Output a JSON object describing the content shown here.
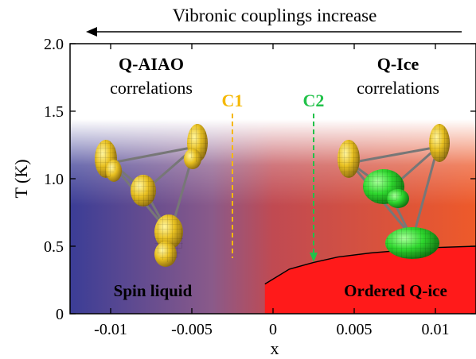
{
  "header": {
    "arrow_label": "Vibronic couplings increase"
  },
  "regions": {
    "left_title": "Q-AIAO",
    "left_subtitle": "correlations",
    "right_title": "Q-Ice",
    "right_subtitle": "correlations",
    "left_phase": "Spin liquid",
    "right_phase": "Ordered Q-ice"
  },
  "markers": [
    {
      "label": "C1",
      "x": -0.0025,
      "color": "#f5b800",
      "arrow": false
    },
    {
      "label": "C2",
      "x": 0.0025,
      "color": "#22c24a",
      "arrow": true
    }
  ],
  "chart_data": {
    "type": "area",
    "title": "",
    "xlabel": "x",
    "ylabel": "T (K)",
    "xlim": [
      -0.0125,
      0.0125
    ],
    "ylim": [
      0,
      2.0
    ],
    "xticks": [
      -0.01,
      -0.005,
      0,
      0.005,
      0.01
    ],
    "xtick_labels": [
      "-0.01",
      "-0.005",
      "0",
      "0.005",
      "0.01"
    ],
    "yticks": [
      0,
      0.5,
      1.0,
      1.5,
      2.0
    ],
    "ytick_labels": [
      "0",
      "0.5",
      "1.0",
      "1.5",
      "2.0"
    ],
    "grid": false,
    "series": [
      {
        "name": "Ordered Q-ice",
        "x": [
          -0.0005,
          0.001,
          0.0025,
          0.004,
          0.006,
          0.008,
          0.01,
          0.0125
        ],
        "y": [
          0.22,
          0.33,
          0.38,
          0.42,
          0.45,
          0.47,
          0.49,
          0.5
        ]
      }
    ],
    "colors": {
      "spin_liquid": "#3b3d96",
      "mid": "#c04a52",
      "ordered": "#ff1a1a",
      "ice_corr": "#ec5a2a"
    }
  }
}
